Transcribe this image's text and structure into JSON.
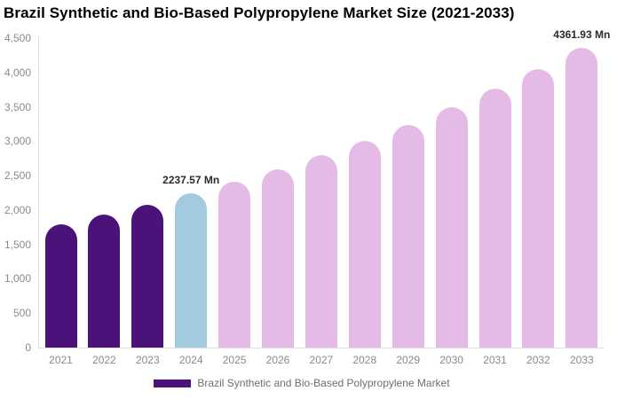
{
  "chart": {
    "title": "Brazil Synthetic and Bio-Based Polypropylene Market Size (2021-2033)",
    "legend": {
      "label": "Brazil Synthetic and Bio-Based Polypropylene Market",
      "swatch_color": "#4B1279"
    }
  },
  "chart_data": {
    "type": "bar",
    "title": "Brazil Synthetic and Bio-Based Polypropylene Market Size (2021-2033)",
    "xlabel": "",
    "ylabel": "",
    "unit": "Mn",
    "ylim": [
      0,
      4500
    ],
    "ytick_step": 500,
    "ytick_labels": [
      "0",
      "500",
      "1,000",
      "1,500",
      "2,000",
      "2,500",
      "3,000",
      "3,500",
      "4,000",
      "4,500"
    ],
    "grid": false,
    "legend_position": "bottom",
    "categories": [
      "2021",
      "2022",
      "2023",
      "2024",
      "2025",
      "2026",
      "2027",
      "2028",
      "2029",
      "2030",
      "2031",
      "2032",
      "2033"
    ],
    "values": [
      1790,
      1928,
      2077,
      2237.57,
      2410,
      2595,
      2795,
      3010,
      3242,
      3492,
      3761,
      4050,
      4361.93
    ],
    "bar_colors": [
      "#4B1279",
      "#4B1279",
      "#4B1279",
      "#A2CBE0",
      "#E5BAE6",
      "#E5BAE6",
      "#E5BAE6",
      "#E5BAE6",
      "#E5BAE6",
      "#E5BAE6",
      "#E5BAE6",
      "#E5BAE6",
      "#E5BAE6"
    ],
    "annotations": [
      {
        "category": "2024",
        "text": "2237.57 Mn"
      },
      {
        "category": "2033",
        "text": "4361.93 Mn"
      }
    ]
  },
  "colors": {
    "historical_bar": "#4B1279",
    "base_year_bar": "#A2CBE0",
    "forecast_bar": "#E5BAE6",
    "axis_line": "#e0e0e0",
    "tick_text": "#8a8a8a",
    "legend_text": "#6e6e6e",
    "annotation_text": "#2b2b2b",
    "title_text": "#000000"
  }
}
